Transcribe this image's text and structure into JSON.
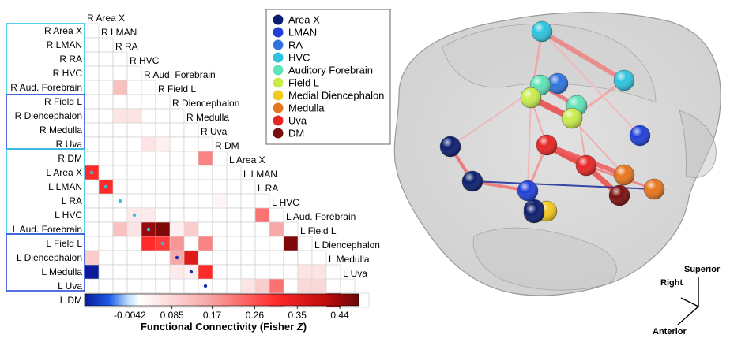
{
  "matrix": {
    "row_labels": [
      "R Area X",
      "R LMAN",
      "R RA",
      "R HVC",
      "R Aud. Forebrain",
      "R Field L",
      "R Diencephalon",
      "R Medulla",
      "R Uva",
      "R DM",
      "L Area X",
      "L LMAN",
      "L RA",
      "L HVC",
      "L Aud. Forebrain",
      "L Field L",
      "L Diencephalon",
      "L Medulla",
      "L Uva",
      "L DM"
    ],
    "diag_labels": [
      "R Area X",
      "R LMAN",
      "R RA",
      "R HVC",
      "R Aud. Forebrain",
      "R Field L",
      "R Diencephalon",
      "R Medulla",
      "R Uva",
      "R DM",
      "L Area X",
      "L LMAN",
      "L RA",
      "L HVC",
      "L Aud. Forebrain",
      "L Field L",
      "L Diencephalon",
      "L Medulla",
      "L Uva"
    ],
    "cells": [
      [
        4,
        2,
        0.12
      ],
      [
        6,
        2,
        0.06
      ],
      [
        6,
        3,
        0.06
      ],
      [
        8,
        4,
        0.06
      ],
      [
        8,
        5,
        0.04
      ],
      [
        9,
        8,
        0.2
      ],
      [
        10,
        0,
        0.3
      ],
      [
        11,
        1,
        0.3
      ],
      [
        12,
        9,
        0.03
      ],
      [
        13,
        3,
        0.05
      ],
      [
        13,
        4,
        0.05
      ],
      [
        13,
        12,
        0.22
      ],
      [
        14,
        2,
        0.12
      ],
      [
        14,
        3,
        0.06
      ],
      [
        14,
        4,
        0.44
      ],
      [
        14,
        5,
        0.46
      ],
      [
        14,
        6,
        0.04
      ],
      [
        14,
        7,
        0.1
      ],
      [
        14,
        13,
        0.16
      ],
      [
        15,
        4,
        0.3
      ],
      [
        15,
        5,
        0.28
      ],
      [
        15,
        6,
        0.18
      ],
      [
        15,
        8,
        0.2
      ],
      [
        15,
        14,
        0.46
      ],
      [
        16,
        0,
        0.1
      ],
      [
        16,
        6,
        0.16
      ],
      [
        16,
        7,
        0.35
      ],
      [
        17,
        0,
        -0.12
      ],
      [
        17,
        6,
        0.05
      ],
      [
        17,
        7,
        0.04
      ],
      [
        17,
        8,
        0.3
      ],
      [
        17,
        15,
        0.06
      ],
      [
        17,
        16,
        0.06
      ],
      [
        18,
        11,
        0.06
      ],
      [
        18,
        12,
        0.1
      ],
      [
        18,
        13,
        0.22
      ],
      [
        18,
        15,
        0.08
      ],
      [
        18,
        16,
        0.08
      ],
      [
        19,
        8,
        0.07
      ],
      [
        19,
        9,
        0.07
      ],
      [
        19,
        11,
        0.06
      ],
      [
        19,
        12,
        0.06
      ],
      [
        19,
        13,
        0.16
      ],
      [
        19,
        15,
        0.08
      ],
      [
        19,
        16,
        0.08
      ],
      [
        19,
        17,
        0.38
      ]
    ],
    "dots": [
      [
        10,
        0,
        "#2ec4e0"
      ],
      [
        11,
        1,
        "#2ec4e0"
      ],
      [
        12,
        2,
        "#2ec4e0"
      ],
      [
        13,
        3,
        "#2ec4e0"
      ],
      [
        14,
        4,
        "#2ec4e0"
      ],
      [
        15,
        5,
        "#2ec4e0"
      ],
      [
        16,
        6,
        "#1a2ea8"
      ],
      [
        17,
        7,
        "#1a2ea8"
      ],
      [
        18,
        8,
        "#1a2ea8"
      ],
      [
        19,
        9,
        "#1a2ea8"
      ]
    ]
  },
  "colorbar": {
    "ticks": [
      "-0.0042",
      "0.085",
      "0.17",
      "0.26",
      "0.35",
      "0.44"
    ],
    "label": "Functional Connectivity (Fisher Z)",
    "label_main": "Functional Connectivity (Fisher ",
    "label_italic": "Z",
    "label_close": ")",
    "min": -0.1,
    "max": 0.48,
    "tick_values": [
      -0.0042,
      0.085,
      0.17,
      0.26,
      0.35,
      0.44
    ]
  },
  "legend": {
    "items": [
      {
        "label": "Area X",
        "color": "#0b1d6e"
      },
      {
        "label": "LMAN",
        "color": "#1f3fd8"
      },
      {
        "label": "RA",
        "color": "#2f73e0"
      },
      {
        "label": "HVC",
        "color": "#2ec4e0"
      },
      {
        "label": "Auditory Forebrain",
        "color": "#5fe3b8"
      },
      {
        "label": "Field L",
        "color": "#c8ec4a"
      },
      {
        "label": "Medial Diencephalon",
        "color": "#f2c91c"
      },
      {
        "label": "Medulla",
        "color": "#e8741c"
      },
      {
        "label": "Uva",
        "color": "#e82424"
      },
      {
        "label": "DM",
        "color": "#7a0e0e"
      }
    ]
  },
  "orientation": {
    "superior": "Superior",
    "right": "Right",
    "anterior": "Anterior"
  }
}
